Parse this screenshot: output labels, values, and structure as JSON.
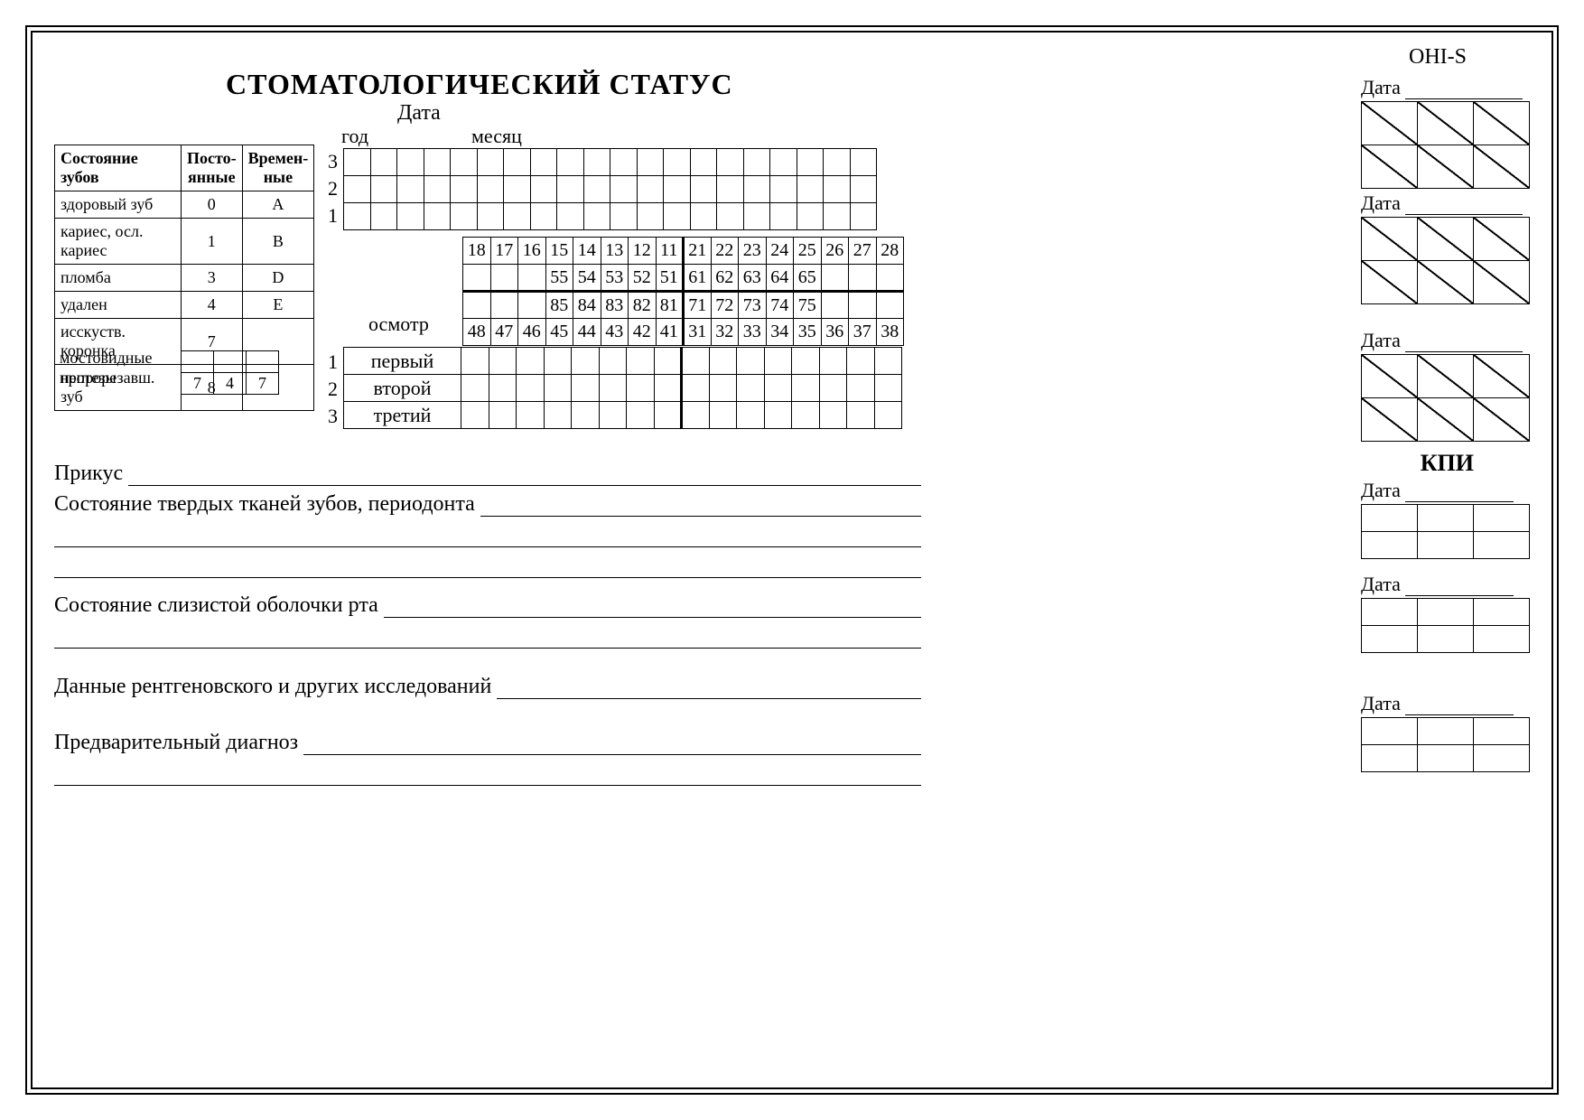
{
  "doc": {
    "title": "СТОМАТОЛОГИЧЕСКИЙ  СТАТУС",
    "date_label": "Дата",
    "year_label": "год",
    "month_label": "месяц",
    "ohis_label": "OHI-S",
    "kpi_label": "КПИ",
    "exam_label": "осмотр"
  },
  "legend": {
    "h1": "Состояние зубов",
    "h2": "Посто-\nянные",
    "h3": "Времен-\nные",
    "rows": [
      {
        "label": "здоровый зуб",
        "perm": "0",
        "temp": "A"
      },
      {
        "label": "кариес, осл. кариес",
        "perm": "1",
        "temp": "B"
      },
      {
        "label": "пломба",
        "perm": "3",
        "temp": "D"
      },
      {
        "label": "удален",
        "perm": "4",
        "temp": "E"
      },
      {
        "label": "исскуств. коронка",
        "perm": "7",
        "temp": ""
      },
      {
        "label": "непрорезавш. зуб",
        "perm": "8",
        "temp": ""
      }
    ],
    "bridge_label1": "мостовидные",
    "bridge_label2": "протезы",
    "bridge_cells": [
      "7",
      "4",
      "7"
    ]
  },
  "grid": {
    "row_nums_top": [
      "3",
      "2",
      "1"
    ],
    "row_nums_bot": [
      "1",
      "2",
      "3"
    ],
    "cols": 20
  },
  "tooth": {
    "upper_perm": [
      "18",
      "17",
      "16",
      "15",
      "14",
      "13",
      "12",
      "11",
      "21",
      "22",
      "23",
      "24",
      "25",
      "26",
      "27",
      "28"
    ],
    "upper_temp": [
      "",
      "",
      "",
      "55",
      "54",
      "53",
      "52",
      "51",
      "61",
      "62",
      "63",
      "64",
      "65",
      "",
      "",
      ""
    ],
    "lower_temp": [
      "",
      "",
      "",
      "85",
      "84",
      "83",
      "82",
      "81",
      "71",
      "72",
      "73",
      "74",
      "75",
      "",
      "",
      ""
    ],
    "lower_perm": [
      "48",
      "47",
      "46",
      "45",
      "44",
      "43",
      "42",
      "41",
      "31",
      "32",
      "33",
      "34",
      "35",
      "36",
      "37",
      "38"
    ]
  },
  "exam": {
    "labels": [
      "первый",
      "второй",
      "третий"
    ]
  },
  "ohis": {
    "date_label": "Дата",
    "blocks": 3
  },
  "kpi": {
    "date_label": "Дата",
    "blocks": 3
  },
  "fields": {
    "bite": "Прикус",
    "hard_tissue": "Состояние твердых тканей зубов, периодонта",
    "mucosa": "Состояние слизистой оболочки рта",
    "xray": "Данные рентгеновского и других исследований",
    "diagnosis": "Предварительный диагноз"
  },
  "style": {
    "background": "#ffffff",
    "line_color": "#000000",
    "font_family": "Times New Roman",
    "title_fontsize": 32,
    "body_fontsize": 22,
    "legend_fontsize": 18,
    "grid_cell_w": 30,
    "grid_cell_h": 30,
    "ohis_cell_w": 62,
    "ohis_cell_h": 48,
    "kpi_cell_h": 30,
    "border_width": 1.5,
    "thick_border_width": 3
  }
}
